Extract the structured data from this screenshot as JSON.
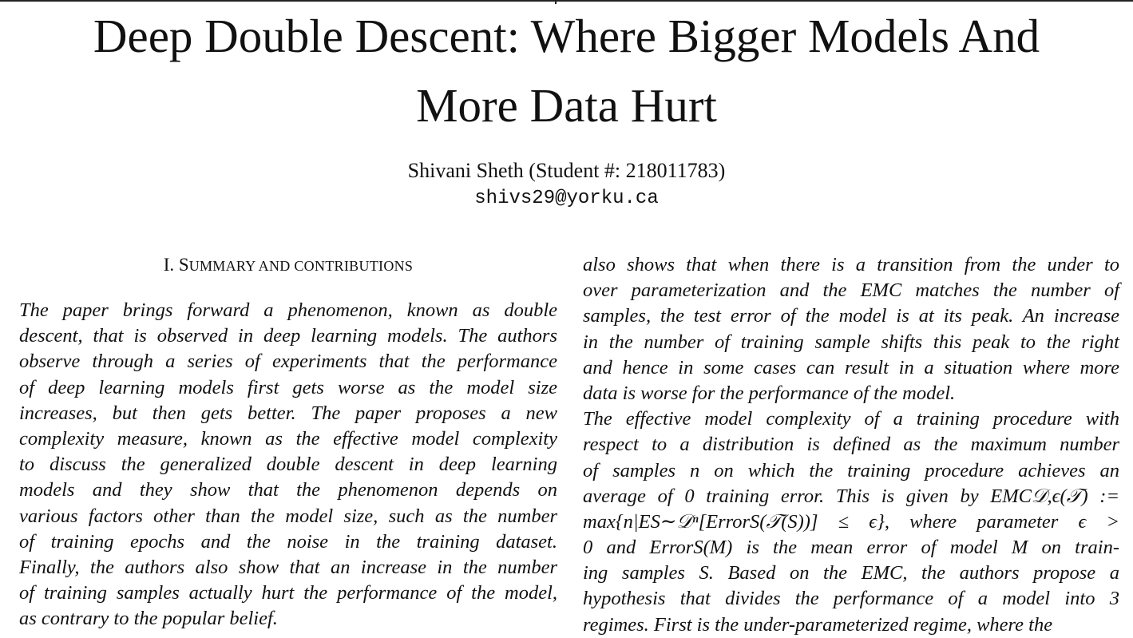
{
  "paper": {
    "title_line1": "Deep Double Descent: Where Bigger Models And",
    "title_line2": "More Data Hurt",
    "author": "Shivani Sheth (Student #: 218011783)",
    "email": "shivs29@yorku.ca"
  },
  "section": {
    "heading_numeral": "I. S",
    "heading_rest": "UMMARY AND CONTRIBUTIONS"
  },
  "left_column": {
    "lines": [
      "  The paper brings forward a phenomenon, known as double",
      "descent, that is observed in deep learning models. The authors",
      "observe through a series of experiments that the performance",
      "of deep learning models first gets worse as the model size",
      "increases, but then gets better. The paper proposes a new",
      "complexity measure, known as the effective model complexity",
      "to discuss the generalized double descent in deep learning",
      "models and they show that the phenomenon depends on",
      "various factors other than the model size, such as the number",
      "of training epochs and the noise in the training dataset.",
      "Finally, the authors also show that an increase in the number",
      "of training samples actually hurt the performance of the model,",
      "as contrary to the popular belief."
    ]
  },
  "right_column": {
    "lines": [
      "also shows that when there is a transition from the under to",
      "over parameterization and the EMC matches the number of",
      "samples, the test error of the model is at its peak. An increase",
      "in the number of training sample shifts this peak to the right",
      "and hence in some cases can result in a situation where more",
      "data is worse for the performance of the model.",
      "  The effective model complexity of a training procedure with",
      "respect to a distribution is defined as the maximum number",
      "of samples n on which the training procedure achieves an",
      "average of 0 training error. This is given by EMC𝒟,ϵ(𝒯) :=",
      "max{n|ES∼𝒟ⁿ[ErrorS(𝒯(S))] ≤ ϵ}, where parameter ϵ >",
      "0 and ErrorS(M) is the mean error of model M on train-",
      "ing samples S. Based on the EMC, the authors propose a",
      "hypothesis that divides the performance of a model into 3",
      "regimes. First is the under-parameterized regime, where the"
    ]
  }
}
